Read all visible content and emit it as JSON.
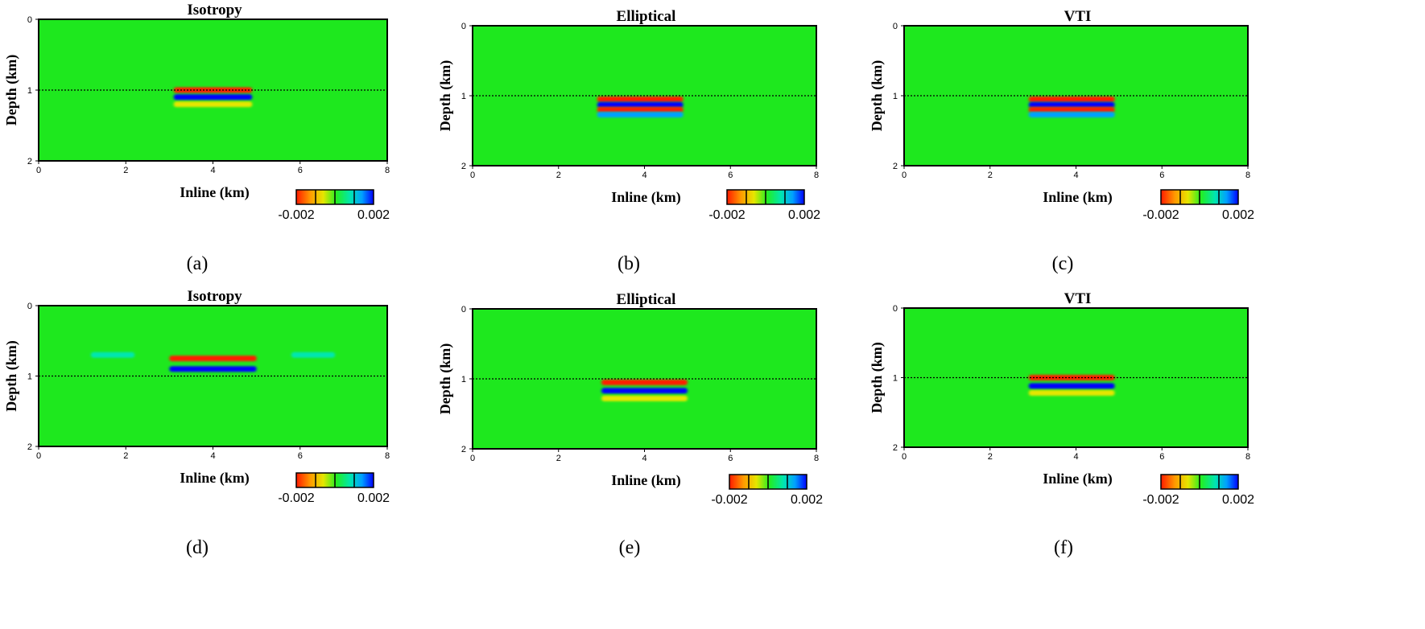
{
  "chart_data": [
    {
      "type": "heatmap",
      "panel_label": "(a)",
      "title": "Isotropy",
      "xlabel": "Inline (km)",
      "ylabel": "Depth (km)",
      "xlim": [
        0,
        8
      ],
      "ylim": [
        0,
        2
      ],
      "xticks": [
        "0",
        "2",
        "4",
        "6",
        "8"
      ],
      "yticks": [
        "0",
        "1",
        "2"
      ],
      "reference_line_depth": 1.0,
      "colorbar": {
        "min_label": "-0.002",
        "max_label": "0.002",
        "min": -0.002,
        "max": 0.002
      },
      "background_value": 0,
      "events": [
        {
          "x_start": 3.1,
          "x_end": 4.9,
          "depth": 1.0,
          "amplitude": -0.002
        },
        {
          "x_start": 3.1,
          "x_end": 4.9,
          "depth": 1.1,
          "amplitude": 0.002
        },
        {
          "x_start": 3.1,
          "x_end": 4.9,
          "depth": 1.2,
          "amplitude": -0.001
        }
      ]
    },
    {
      "type": "heatmap",
      "panel_label": "(b)",
      "title": "Elliptical",
      "xlabel": "Inline (km)",
      "ylabel": "Depth (km)",
      "xlim": [
        0,
        8
      ],
      "ylim": [
        0,
        2
      ],
      "xticks": [
        "0",
        "2",
        "4",
        "6",
        "8"
      ],
      "yticks": [
        "0",
        "1",
        "2"
      ],
      "reference_line_depth": 1.0,
      "colorbar": {
        "min_label": "-0.002",
        "max_label": "0.002",
        "min": -0.002,
        "max": 0.002
      },
      "background_value": 0,
      "events": [
        {
          "x_start": 2.9,
          "x_end": 4.9,
          "depth": 1.05,
          "amplitude": -0.002
        },
        {
          "x_start": 2.9,
          "x_end": 4.9,
          "depth": 1.13,
          "amplitude": 0.002
        },
        {
          "x_start": 2.9,
          "x_end": 4.9,
          "depth": 1.2,
          "amplitude": -0.002
        },
        {
          "x_start": 2.9,
          "x_end": 4.9,
          "depth": 1.27,
          "amplitude": 0.001
        }
      ]
    },
    {
      "type": "heatmap",
      "panel_label": "(c)",
      "title": "VTI",
      "xlabel": "Inline (km)",
      "ylabel": "Depth (km)",
      "xlim": [
        0,
        8
      ],
      "ylim": [
        0,
        2
      ],
      "xticks": [
        "0",
        "2",
        "4",
        "6",
        "8"
      ],
      "yticks": [
        "0",
        "1",
        "2"
      ],
      "reference_line_depth": 1.0,
      "colorbar": {
        "min_label": "-0.002",
        "max_label": "0.002",
        "min": -0.002,
        "max": 0.002
      },
      "background_value": 0,
      "events": [
        {
          "x_start": 2.9,
          "x_end": 4.9,
          "depth": 1.05,
          "amplitude": -0.002
        },
        {
          "x_start": 2.9,
          "x_end": 4.9,
          "depth": 1.13,
          "amplitude": 0.002
        },
        {
          "x_start": 2.9,
          "x_end": 4.9,
          "depth": 1.2,
          "amplitude": -0.002
        },
        {
          "x_start": 2.9,
          "x_end": 4.9,
          "depth": 1.27,
          "amplitude": 0.001
        }
      ]
    },
    {
      "type": "heatmap",
      "panel_label": "(d)",
      "title": "Isotropy",
      "xlabel": "Inline (km)",
      "ylabel": "Depth (km)",
      "xlim": [
        0,
        8
      ],
      "ylim": [
        0,
        2
      ],
      "xticks": [
        "0",
        "2",
        "4",
        "6",
        "8"
      ],
      "yticks": [
        "0",
        "1",
        "2"
      ],
      "reference_line_depth": 1.0,
      "colorbar": {
        "min_label": "-0.002",
        "max_label": "0.002",
        "min": -0.002,
        "max": 0.002
      },
      "background_value": 0,
      "events": [
        {
          "x_start": 3.0,
          "x_end": 5.0,
          "depth": 0.75,
          "amplitude": -0.002
        },
        {
          "x_start": 3.0,
          "x_end": 5.0,
          "depth": 0.9,
          "amplitude": 0.002
        },
        {
          "x_start": 1.2,
          "x_end": 2.2,
          "depth": 0.7,
          "amplitude": 0.0008
        },
        {
          "x_start": 5.8,
          "x_end": 6.8,
          "depth": 0.7,
          "amplitude": 0.0008
        }
      ]
    },
    {
      "type": "heatmap",
      "panel_label": "(e)",
      "title": "Elliptical",
      "xlabel": "Inline (km)",
      "ylabel": "Depth (km)",
      "xlim": [
        0,
        8
      ],
      "ylim": [
        0,
        2
      ],
      "xticks": [
        "0",
        "2",
        "4",
        "6",
        "8"
      ],
      "yticks": [
        "0",
        "1",
        "2"
      ],
      "reference_line_depth": 1.0,
      "colorbar": {
        "min_label": "-0.002",
        "max_label": "0.002",
        "min": -0.002,
        "max": 0.002
      },
      "background_value": 0,
      "events": [
        {
          "x_start": 3.0,
          "x_end": 5.0,
          "depth": 1.05,
          "amplitude": -0.002
        },
        {
          "x_start": 3.0,
          "x_end": 5.0,
          "depth": 1.17,
          "amplitude": 0.002
        },
        {
          "x_start": 3.0,
          "x_end": 5.0,
          "depth": 1.28,
          "amplitude": -0.0008
        }
      ]
    },
    {
      "type": "heatmap",
      "panel_label": "(f)",
      "title": "VTI",
      "xlabel": "Inline (km)",
      "ylabel": "Depth (km)",
      "xlim": [
        0,
        8
      ],
      "ylim": [
        0,
        2
      ],
      "xticks": [
        "0",
        "2",
        "4",
        "6",
        "8"
      ],
      "yticks": [
        "0",
        "1",
        "2"
      ],
      "reference_line_depth": 1.0,
      "colorbar": {
        "min_label": "-0.002",
        "max_label": "0.002",
        "min": -0.002,
        "max": 0.002
      },
      "background_value": 0,
      "events": [
        {
          "x_start": 2.9,
          "x_end": 4.9,
          "depth": 1.0,
          "amplitude": -0.002
        },
        {
          "x_start": 2.9,
          "x_end": 4.9,
          "depth": 1.12,
          "amplitude": 0.002
        },
        {
          "x_start": 2.9,
          "x_end": 4.9,
          "depth": 1.22,
          "amplitude": -0.0008
        }
      ]
    }
  ],
  "colors": {
    "background_green": "#1ee81e",
    "colormap": [
      "#ff1a00",
      "#ff9900",
      "#e6e600",
      "#22ee22",
      "#00e6b0",
      "#00a0ff",
      "#0000ff"
    ],
    "frame": "#000000"
  }
}
